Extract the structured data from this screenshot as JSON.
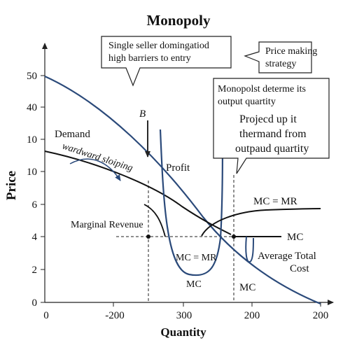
{
  "chart_data": {
    "type": "line",
    "title": "Monopoly",
    "xlabel": "Quantity",
    "ylabel": "Price",
    "x_ticks": [
      "0",
      "-200",
      "300",
      "200",
      "200"
    ],
    "y_ticks": [
      "0",
      "2",
      "4",
      "6",
      "10",
      "10",
      "40",
      "50"
    ],
    "grid": false,
    "colors": {
      "demand": "#2b4a7a",
      "curve": "#111111",
      "axis": "#222222"
    },
    "series": [
      {
        "name": "Demand",
        "role": "demand"
      },
      {
        "name": "Marginal Revenue",
        "role": "marginal_revenue"
      },
      {
        "name": "MC",
        "role": "marginal_cost"
      },
      {
        "name": "Average Total Cost",
        "role": "average_total_cost"
      }
    ],
    "annotations": {
      "demand": "Demand",
      "sloping": "wardward sloiping",
      "marginal_revenue": "Marginal Revenue",
      "profit": "Profit",
      "point_b": "B",
      "mc_mr_top": "MC = MR",
      "mc_right": "MC",
      "mc_mr_inside": "MC = MR",
      "mc_bottom_left": "MC",
      "mc_bottom_right": "MC",
      "atc_line1": "Average Total",
      "atc_line2": "Cost"
    },
    "callouts": {
      "single_seller": [
        "Single seller domingatiod",
        "high barriers to entry"
      ],
      "price_making": [
        "Price making",
        "strategy"
      ],
      "monopoly_output": [
        "Monopolst determe its",
        "output quartity"
      ],
      "project_up": [
        "Projecd up it",
        "thermand from",
        "outpaud quartity"
      ]
    }
  }
}
